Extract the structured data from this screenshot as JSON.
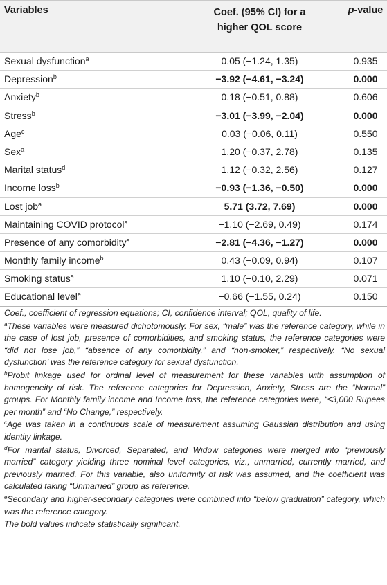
{
  "table": {
    "headers": {
      "variables": "Variables",
      "coef_line1": "Coef. (95% CI) for a",
      "coef_line2": "higher QOL score",
      "pvalue_italic": "p",
      "pvalue_rest": "-value"
    },
    "rows": [
      {
        "name": "Sexual dysfunction",
        "sup": "a",
        "coef": "0.05 (−1.24, 1.35)",
        "p": "0.935"
      },
      {
        "name": "Depression",
        "sup": "b",
        "coef": "−3.92 (−4.61, −3.24)",
        "p": "0.000"
      },
      {
        "name": "Anxiety",
        "sup": "b",
        "coef": "0.18 (−0.51, 0.88)",
        "p": "0.606"
      },
      {
        "name": "Stress",
        "sup": "b",
        "coef": "−3.01 (−3.99, −2.04)",
        "p": "0.000"
      },
      {
        "name": "Age",
        "sup": "c",
        "coef": "0.03 (−0.06, 0.11)",
        "p": "0.550"
      },
      {
        "name": "Sex",
        "sup": "a",
        "coef": "1.20 (−0.37, 2.78)",
        "p": "0.135"
      },
      {
        "name": "Marital status",
        "sup": "d",
        "coef": "1.12 (−0.32, 2.56)",
        "p": "0.127"
      },
      {
        "name": "Income loss",
        "sup": "b",
        "coef": "−0.93 (−1.36, −0.50)",
        "p": "0.000"
      },
      {
        "name": "Lost job",
        "sup": "a",
        "coef": "5.71 (3.72, 7.69)",
        "p": "0.000"
      },
      {
        "name": "Maintaining COVID protocol",
        "sup": "a",
        "coef": "−1.10 (−2.69, 0.49)",
        "p": "0.174"
      },
      {
        "name": "Presence of any comorbidity",
        "sup": "a",
        "coef": "−2.81 (−4.36, −1.27)",
        "p": "0.000"
      },
      {
        "name": "Monthly family income",
        "sup": "b",
        "coef": "0.43 (−0.09, 0.94)",
        "p": "0.107"
      },
      {
        "name": "Smoking status",
        "sup": "a",
        "coef": "1.10 (−0.10, 2.29)",
        "p": "0.071"
      },
      {
        "name": "Educational level",
        "sup": "e",
        "coef": "−0.66 (−1.55, 0.24)",
        "p": "0.150"
      }
    ],
    "bold_rows": [
      1,
      3,
      7,
      8,
      10
    ]
  },
  "notes": {
    "abbrev": "Coef., coefficient of regression equations; CI, confidence interval; QOL, quality of life.",
    "a": {
      "sup": "a",
      "text": "These variables were measured dichotomously. For sex, “male” was the reference category, while in the case of lost job, presence of comorbidities, and smoking status, the reference categories were “did not lose job,” “absence of any comorbidity,” and “non-smoker,” respectively. “No sexual dysfunction’ was the reference category for sexual dysfunction."
    },
    "b": {
      "sup": "b",
      "text": "Probit linkage used for ordinal level of measurement for these variables with assumption of homogeneity of risk. The reference categories for Depression, Anxiety, Stress are the “Normal” groups. For Monthly family income and Income loss, the reference categories were, “≤3,000 Rupees per month” and “No Change,” respectively."
    },
    "c": {
      "sup": "c",
      "text": "Age was taken in a continuous scale of measurement assuming Gaussian distribution and using identity linkage."
    },
    "d": {
      "sup": "d",
      "text": "For marital status, Divorced, Separated, and Widow categories were merged into “previously married” category yielding three nominal level categories, viz., unmarried, currently married, and previously married. For this variable, also uniformity of risk was assumed, and the coefficient was calculated taking “Unmarried” group as reference."
    },
    "e": {
      "sup": "e",
      "text": "Secondary and higher-secondary categories were combined into “below graduation” category, which was the reference category."
    },
    "bold_note": "The bold values indicate statistically significant."
  }
}
